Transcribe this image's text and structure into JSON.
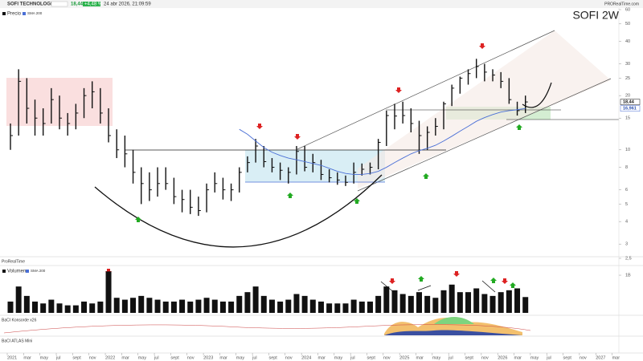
{
  "header": {
    "name": "SOFI TECHNOLOGIES",
    "price": "18,44",
    "change": "+4,48 %",
    "datetime": "24 abr 2026, 21:09:59",
    "brand": "PRORealTime.com"
  },
  "chart_data": {
    "type": "ohlc",
    "label": "SOFI  2W",
    "legend": [
      "Precio",
      "SMA 200"
    ],
    "log_scale": true,
    "x": [
      "2021-01",
      "2021-02",
      "2021-03",
      "2021-04",
      "2021-05",
      "2021-06",
      "2021-07",
      "2021-08",
      "2021-09",
      "2021-10",
      "2021-11",
      "2021-12",
      "2022-01",
      "2022-02",
      "2022-03",
      "2022-04",
      "2022-05",
      "2022-06",
      "2022-07",
      "2022-08",
      "2022-09",
      "2022-10",
      "2022-11",
      "2022-12",
      "2023-01",
      "2023-02",
      "2023-03",
      "2023-04",
      "2023-05",
      "2023-06",
      "2023-07",
      "2023-08",
      "2023-09",
      "2023-10",
      "2023-11",
      "2023-12",
      "2024-01",
      "2024-02",
      "2024-03",
      "2024-04",
      "2024-05",
      "2024-06",
      "2024-07",
      "2024-08",
      "2024-09",
      "2024-10",
      "2024-11",
      "2024-12",
      "2025-01",
      "2025-02",
      "2025-03",
      "2025-04",
      "2025-05",
      "2025-06",
      "2025-07",
      "2025-08",
      "2025-09",
      "2025-10",
      "2025-11",
      "2025-12",
      "2026-01",
      "2026-02",
      "2026-03",
      "2026-04"
    ],
    "series": [
      {
        "name": "Precio",
        "color": "#111111",
        "high": [
          14,
          28,
          25,
          19,
          17,
          22,
          20,
          16,
          18,
          22,
          24,
          22,
          17,
          13,
          12,
          10,
          8,
          7.5,
          8,
          8,
          7,
          6,
          6,
          5.5,
          6.5,
          7.5,
          7,
          6.5,
          8,
          9.2,
          11.5,
          10.5,
          9,
          8.5,
          8,
          10.5,
          10.5,
          9.5,
          8.8,
          7.8,
          7.5,
          7.2,
          8.5,
          8.4,
          8.5,
          11.5,
          16.5,
          18,
          18.5,
          17,
          14.5,
          13.5,
          15,
          18.5,
          23,
          25.5,
          28,
          32,
          30,
          28,
          27,
          25,
          18.5,
          20
        ],
        "low": [
          10,
          12,
          14,
          12,
          12,
          14,
          13,
          12,
          13,
          15,
          17,
          14,
          11,
          9,
          8,
          6.5,
          5,
          5.2,
          5.5,
          6,
          5,
          4.5,
          4.4,
          4.3,
          4.5,
          5.8,
          5.3,
          5.2,
          5.8,
          7.5,
          8.5,
          8,
          7.5,
          6.8,
          6.5,
          7.3,
          7.6,
          7.5,
          6.8,
          6.6,
          6.4,
          6.3,
          6.5,
          7.2,
          7.3,
          7.8,
          10.5,
          13,
          14,
          12.5,
          9.5,
          10,
          12,
          13,
          17.5,
          20.5,
          23,
          25,
          24,
          24,
          22,
          18,
          15.5,
          16
        ],
        "close": [
          12,
          24,
          17,
          15,
          14,
          19,
          15,
          14,
          16,
          20,
          21,
          16,
          12,
          10,
          9.5,
          7.5,
          6.5,
          6,
          6.5,
          6.5,
          5.5,
          5.3,
          4.8,
          4.6,
          6,
          6.5,
          6,
          6,
          7.5,
          8.5,
          10.5,
          8.6,
          8,
          7.7,
          7.5,
          9.8,
          8,
          8.5,
          7.3,
          7,
          6.8,
          6.6,
          7.5,
          7.8,
          8,
          11,
          15.5,
          15.4,
          15.5,
          14,
          12,
          12.5,
          13.5,
          18,
          22,
          25,
          26.5,
          29,
          27,
          26,
          24,
          19,
          16.5,
          18.44
        ]
      },
      {
        "name": "SMA 200",
        "color": "#4a6fd6",
        "values": [
          null,
          null,
          null,
          null,
          null,
          null,
          null,
          null,
          null,
          null,
          null,
          null,
          null,
          null,
          null,
          null,
          null,
          null,
          null,
          null,
          null,
          null,
          null,
          null,
          null,
          null,
          null,
          null,
          13,
          12.2,
          11.2,
          10.3,
          9.7,
          9.3,
          9.0,
          8.8,
          8.6,
          8.4,
          8.2,
          7.9,
          7.6,
          7.4,
          7.3,
          7.3,
          7.4,
          7.6,
          8.0,
          8.5,
          9.0,
          9.5,
          9.9,
          10.2,
          10.6,
          11.2,
          11.9,
          12.7,
          13.5,
          14.4,
          15.1,
          15.7,
          16.2,
          16.5,
          16.7,
          16.961
        ]
      }
    ],
    "last_labels": [
      {
        "value": 18.44,
        "label": "18,44"
      },
      {
        "value": 16.961,
        "label": "16,961"
      }
    ],
    "ylim": [
      2.5,
      60
    ],
    "yticks": [
      {
        "value": 2.5,
        "label": "2,5"
      },
      3,
      4,
      5,
      6,
      8,
      10,
      15,
      20,
      25,
      30,
      40,
      50,
      60
    ],
    "xticks": [
      {
        "value": "2021-01",
        "label": "2021"
      },
      {
        "value": "2021-03",
        "label": "mar"
      },
      {
        "value": "2021-05",
        "label": "may"
      },
      {
        "value": "2021-07",
        "label": "jul"
      },
      {
        "value": "2021-09",
        "label": "sept"
      },
      {
        "value": "2021-11",
        "label": "nov"
      },
      {
        "value": "2022-01",
        "label": "2022"
      },
      {
        "value": "2022-03",
        "label": "mar"
      },
      {
        "value": "2022-05",
        "label": "may"
      },
      {
        "value": "2022-07",
        "label": "jul"
      },
      {
        "value": "2022-09",
        "label": "sept"
      },
      {
        "value": "2022-11",
        "label": "nov"
      },
      {
        "value": "2023-01",
        "label": "2023"
      },
      {
        "value": "2023-03",
        "label": "mar"
      },
      {
        "value": "2023-05",
        "label": "may"
      },
      {
        "value": "2023-07",
        "label": "jul"
      },
      {
        "value": "2023-09",
        "label": "sept"
      },
      {
        "value": "2023-11",
        "label": "nov"
      },
      {
        "value": "2024-01",
        "label": "2024"
      },
      {
        "value": "2024-03",
        "label": "mar"
      },
      {
        "value": "2024-05",
        "label": "may"
      },
      {
        "value": "2024-07",
        "label": "jul"
      },
      {
        "value": "2024-09",
        "label": "sept"
      },
      {
        "value": "2024-11",
        "label": "nov"
      },
      {
        "value": "2025-01",
        "label": "2025"
      },
      {
        "value": "2025-03",
        "label": "mar"
      },
      {
        "value": "2025-05",
        "label": "may"
      },
      {
        "value": "2025-07",
        "label": "jul"
      },
      {
        "value": "2025-09",
        "label": "sept"
      },
      {
        "value": "2025-11",
        "label": "nov"
      },
      {
        "value": "2026-01",
        "label": "2026"
      },
      {
        "value": "2026-03",
        "label": "mar"
      },
      {
        "value": "2026-05",
        "label": "may"
      },
      {
        "value": "2026-07",
        "label": "jul"
      },
      {
        "value": "2026-09",
        "label": "sept"
      },
      {
        "value": "2026-11",
        "label": "nov"
      },
      {
        "value": "2027-01",
        "label": "2027"
      },
      {
        "value": "2027-03",
        "label": "mar"
      }
    ],
    "volume": {
      "name": "Volumen",
      "legend": "SMA 200",
      "color": "#111111",
      "values": [
        300,
        700,
        450,
        300,
        250,
        350,
        250,
        200,
        200,
        300,
        250,
        300,
        1100,
        400,
        350,
        400,
        450,
        400,
        350,
        300,
        300,
        350,
        300,
        350,
        400,
        350,
        300,
        300,
        450,
        550,
        700,
        450,
        350,
        300,
        350,
        500,
        450,
        350,
        300,
        250,
        250,
        250,
        350,
        300,
        300,
        450,
        700,
        600,
        500,
        450,
        550,
        450,
        400,
        600,
        750,
        550,
        550,
        650,
        500,
        450,
        550,
        600,
        650,
        420
      ],
      "ylim": [
        0,
        1150
      ],
      "yticks": [
        {
          "value": 1000,
          "label": "1B"
        }
      ]
    },
    "panes": [
      "ProRealTime",
      "BaCI Konsorde x26",
      "BaCI ATLAS Mini"
    ]
  }
}
